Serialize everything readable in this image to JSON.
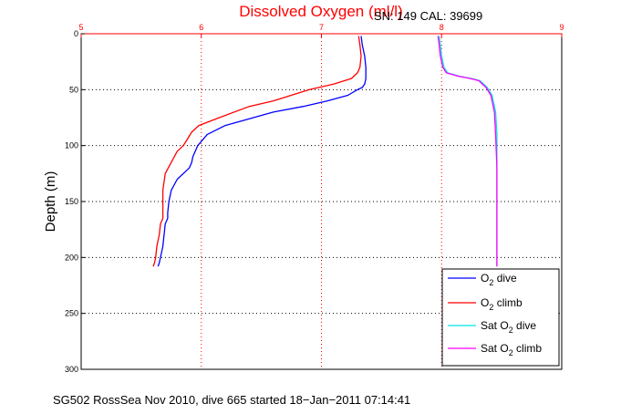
{
  "chart_data": {
    "type": "line",
    "title": "Dissolved Oxygen (ml/l)",
    "subtitle": "SN: 149  CAL: 39699",
    "xlabel": "",
    "ylabel": "Depth (m)",
    "xlim": [
      5,
      9
    ],
    "ylim": [
      0,
      300
    ],
    "y_reversed": true,
    "x_axis_position": "top",
    "grid": true,
    "xticks": [
      "5",
      "6",
      "7",
      "8",
      "9"
    ],
    "yticks": [
      "0",
      "50",
      "100",
      "150",
      "200",
      "250",
      "300"
    ],
    "legend_position": "bottom-right",
    "series": [
      {
        "name": "O2 dive",
        "legend_main": "O",
        "legend_sub": "2",
        "legend_rest": " dive",
        "color": "#0000ff",
        "x": [
          7.33,
          7.34,
          7.36,
          7.37,
          7.37,
          7.36,
          7.34,
          7.3,
          7.22,
          7.05,
          6.85,
          6.6,
          6.4,
          6.2,
          6.05,
          5.97,
          5.93,
          5.92,
          5.9,
          5.8,
          5.75,
          5.73,
          5.72,
          5.72,
          5.7,
          5.69,
          5.68,
          5.67,
          5.66,
          5.65,
          5.64
        ],
        "y": [
          2,
          10,
          20,
          30,
          40,
          45,
          48,
          50,
          55,
          60,
          65,
          70,
          76,
          82,
          90,
          100,
          110,
          115,
          120,
          130,
          140,
          150,
          160,
          165,
          170,
          180,
          190,
          195,
          200,
          205,
          208
        ]
      },
      {
        "name": "O2 climb",
        "legend_main": "O",
        "legend_sub": "2",
        "legend_rest": " climb",
        "color": "#ff0000",
        "x": [
          7.31,
          7.32,
          7.33,
          7.32,
          7.3,
          7.25,
          7.1,
          6.9,
          6.6,
          6.4,
          6.15,
          5.98,
          5.92,
          5.88,
          5.85,
          5.8,
          5.75,
          5.7,
          5.68,
          5.68,
          5.68,
          5.68,
          5.66,
          5.65,
          5.64,
          5.63,
          5.62,
          5.61,
          5.6
        ],
        "y": [
          2,
          10,
          20,
          30,
          35,
          40,
          45,
          50,
          60,
          65,
          75,
          82,
          88,
          95,
          100,
          105,
          115,
          125,
          140,
          150,
          160,
          165,
          170,
          180,
          185,
          190,
          200,
          205,
          208
        ]
      },
      {
        "name": "Sat O2 dive",
        "legend_main": "Sat O",
        "legend_sub": "2",
        "legend_rest": " dive",
        "color": "#00e5e5",
        "x": [
          7.98,
          7.99,
          8.0,
          8.02,
          8.05,
          8.15,
          8.25,
          8.32,
          8.38,
          8.42,
          8.45,
          8.46,
          8.46,
          8.46,
          8.46,
          8.46
        ],
        "y": [
          2,
          10,
          20,
          30,
          35,
          38,
          40,
          42,
          48,
          55,
          70,
          90,
          120,
          150,
          180,
          208
        ]
      },
      {
        "name": "Sat O2 climb",
        "legend_main": "Sat O",
        "legend_sub": "2",
        "legend_rest": " climb",
        "color": "#ff00ff",
        "x": [
          7.97,
          7.98,
          7.99,
          8.01,
          8.04,
          8.14,
          8.24,
          8.31,
          8.37,
          8.41,
          8.44,
          8.45,
          8.46,
          8.46,
          8.46,
          8.46
        ],
        "y": [
          2,
          10,
          20,
          30,
          35,
          38,
          40,
          42,
          48,
          55,
          70,
          90,
          120,
          150,
          180,
          208
        ]
      }
    ]
  },
  "caption": "SG502 RossSea Nov 2010, dive 665 started 18−Jan−2011 07:14:41"
}
